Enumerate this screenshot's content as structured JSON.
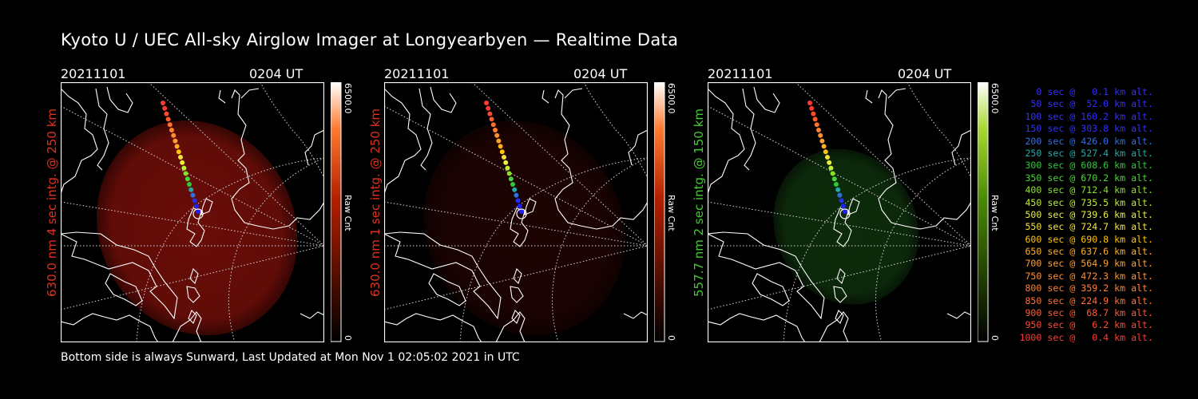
{
  "page": {
    "title": "Kyoto U / UEC All-sky Airglow Imager at Longyearbyen — Realtime Data",
    "footer": "Bottom side is always Sunward, Last Updated at Mon Nov  1 02:05:02 2021 in UTC"
  },
  "panels": [
    {
      "date": "20211101",
      "time": "0204 UT",
      "side_label": "630.0 nm 4 sec intg. @ 250 km",
      "side_color": "#e03020",
      "glow": "#6a0d08",
      "cbar_color": "#ff3a00",
      "cbar_max": "6500.0",
      "cbar_min": "0",
      "cbar_unit": "Raw Cnt"
    },
    {
      "date": "20211101",
      "time": "0204 UT",
      "side_label": "630.0 nm 1 sec intg. @ 250 km",
      "side_color": "#e03020",
      "glow": "#1c0302",
      "cbar_color": "#ff3a00",
      "cbar_max": "6500.0",
      "cbar_min": "0",
      "cbar_unit": "Raw Cnt"
    },
    {
      "date": "20211101",
      "time": "0204 UT",
      "side_label": "557.7 nm 2 sec intg. @ 150 km",
      "side_color": "#44cc33",
      "glow": "#0d2c0b",
      "cbar_color": "#6ccc10",
      "cbar_max": "6500.0",
      "cbar_min": "0",
      "cbar_unit": "Raw Cnt"
    }
  ],
  "legend": [
    {
      "text": "0 sec @   0.1 km alt.",
      "color": "#3030ff"
    },
    {
      "text": "50 sec @  52.0 km alt.",
      "color": "#3030ff"
    },
    {
      "text": "100 sec @ 160.2 km alt.",
      "color": "#3030ff"
    },
    {
      "text": "150 sec @ 303.8 km alt.",
      "color": "#3030ff"
    },
    {
      "text": "200 sec @ 426.0 km alt.",
      "color": "#2f6fe6"
    },
    {
      "text": "250 sec @ 527.4 km alt.",
      "color": "#22aaaa"
    },
    {
      "text": "300 sec @ 608.6 km alt.",
      "color": "#2ec83a"
    },
    {
      "text": "350 sec @ 670.2 km alt.",
      "color": "#4cd23a"
    },
    {
      "text": "400 sec @ 712.4 km alt.",
      "color": "#86e02a"
    },
    {
      "text": "450 sec @ 735.5 km alt.",
      "color": "#bdf034"
    },
    {
      "text": "500 sec @ 739.6 km alt.",
      "color": "#e8f040"
    },
    {
      "text": "550 sec @ 724.7 km alt.",
      "color": "#f4e040"
    },
    {
      "text": "600 sec @ 690.8 km alt.",
      "color": "#ffc400"
    },
    {
      "text": "650 sec @ 637.6 km alt.",
      "color": "#ffae22"
    },
    {
      "text": "700 sec @ 564.9 km alt.",
      "color": "#ff9e30"
    },
    {
      "text": "750 sec @ 472.3 km alt.",
      "color": "#ff9030"
    },
    {
      "text": "800 sec @ 359.2 km alt.",
      "color": "#ff8030"
    },
    {
      "text": "850 sec @ 224.9 km alt.",
      "color": "#ff7030"
    },
    {
      "text": "900 sec @  68.7 km alt.",
      "color": "#ff5a30"
    },
    {
      "text": "950 sec @   6.2 km alt.",
      "color": "#ff4a30"
    },
    {
      "text": "1000 sec @   0.4 km alt.",
      "color": "#ff3a30"
    }
  ]
}
